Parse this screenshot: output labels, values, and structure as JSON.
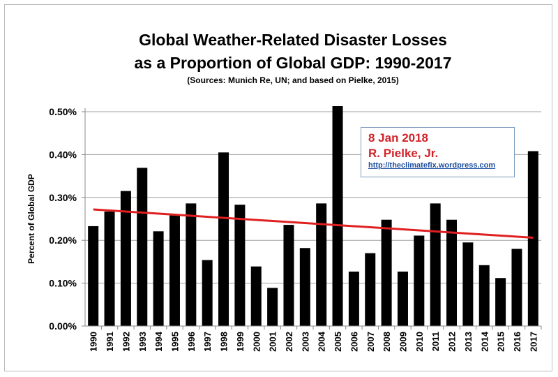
{
  "chart_data": {
    "type": "bar",
    "title": "Global Weather-Related Disaster Losses",
    "title_line2": "as a Proportion of Global GDP: 1990-2017",
    "subtitle": "(Sources: Munich Re, UN; and based on Pielke, 2015)",
    "xlabel": "",
    "ylabel": "Percent of Global GDP",
    "ylim": [
      0,
      0.5
    ],
    "yticks": [
      0,
      0.1,
      0.2,
      0.3,
      0.4,
      0.5
    ],
    "ytick_labels": [
      "0.00%",
      "0.10%",
      "0.20%",
      "0.30%",
      "0.40%",
      "0.50%"
    ],
    "grid": "horizontal",
    "categories": [
      "1990",
      "1991",
      "1992",
      "1993",
      "1994",
      "1995",
      "1996",
      "1997",
      "1998",
      "1999",
      "2000",
      "2001",
      "2002",
      "2003",
      "2004",
      "2005",
      "2006",
      "2007",
      "2008",
      "2009",
      "2010",
      "2011",
      "2012",
      "2013",
      "2014",
      "2015",
      "2016",
      "2017"
    ],
    "values": [
      0.233,
      0.267,
      0.315,
      0.369,
      0.221,
      0.258,
      0.286,
      0.154,
      0.405,
      0.283,
      0.139,
      0.089,
      0.236,
      0.182,
      0.286,
      0.513,
      0.127,
      0.17,
      0.248,
      0.127,
      0.211,
      0.286,
      0.248,
      0.195,
      0.142,
      0.112,
      0.18,
      0.408
    ],
    "trendline": {
      "start": 0.272,
      "end": 0.206,
      "color": "#e02020"
    },
    "bar_color": "#000000"
  },
  "annotation": {
    "date": "8 Jan 2018",
    "author": "R. Pielke, Jr.",
    "url": "http://theclimatefix.wordpress.com"
  }
}
